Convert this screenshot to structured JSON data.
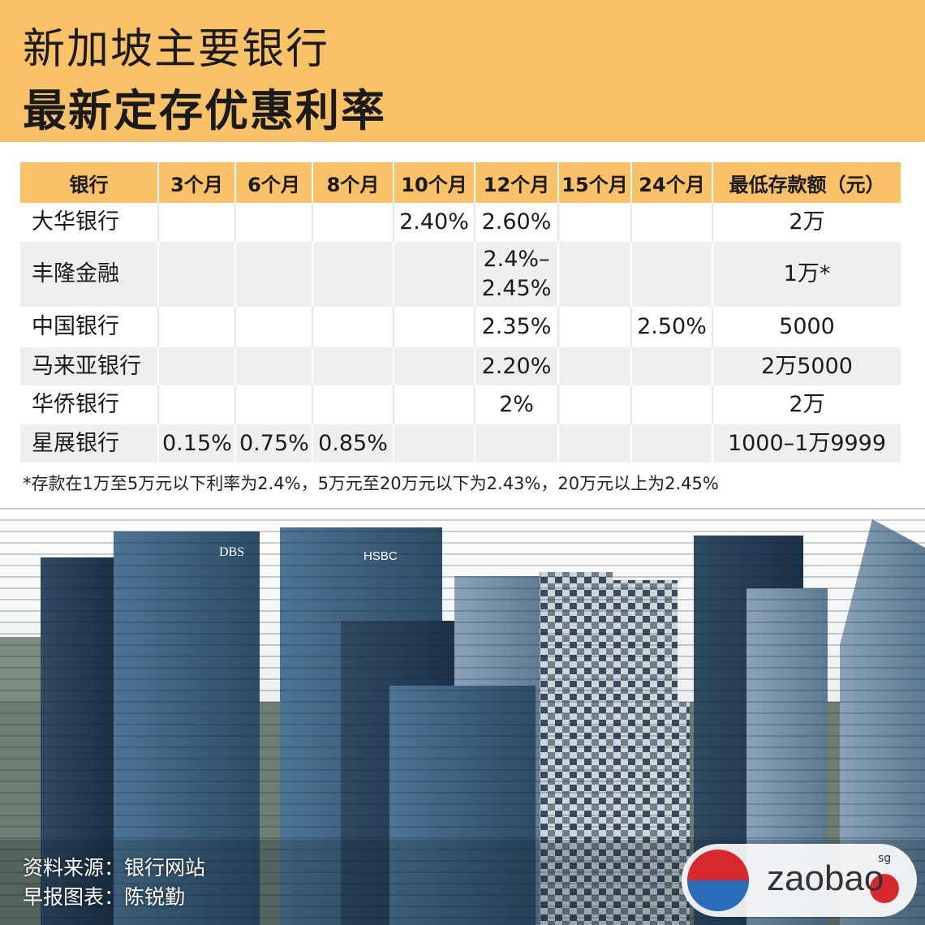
{
  "header": {
    "title_line1": "新加坡主要银行",
    "title_line2": "最新定存优惠利率"
  },
  "table": {
    "columns": [
      "银行",
      "3个月",
      "6个月",
      "8个月",
      "10个月",
      "12个月",
      "15个月",
      "24个月",
      "最低存款额（元）"
    ],
    "rows": [
      [
        "大华银行",
        null,
        null,
        null,
        "2.40%",
        "2.60%",
        null,
        null,
        "2万"
      ],
      [
        "丰隆金融",
        null,
        null,
        null,
        null,
        "2.4%–2.45%",
        null,
        null,
        "1万*"
      ],
      [
        "中国银行",
        null,
        null,
        null,
        null,
        "2.35%",
        null,
        "2.50%",
        "5000"
      ],
      [
        "马来亚银行",
        null,
        null,
        null,
        null,
        "2.20%",
        null,
        null,
        "2万5000"
      ],
      [
        "华侨银行",
        null,
        null,
        null,
        null,
        "2%",
        null,
        null,
        "2万"
      ],
      [
        "星展银行",
        "0.15%",
        "0.75%",
        "0.85%",
        null,
        null,
        null,
        null,
        "1000–1万9999"
      ]
    ]
  },
  "footnote": "*存款在1万至5万元以下利率为2.4%，5万元至20万元以下为2.43%，20万元以上为2.45%",
  "source": {
    "line1": "资料来源：银行网站",
    "line2": "早报图表：陈锐勤"
  },
  "logo": {
    "text": "zaobao",
    "suffix": "sg"
  }
}
